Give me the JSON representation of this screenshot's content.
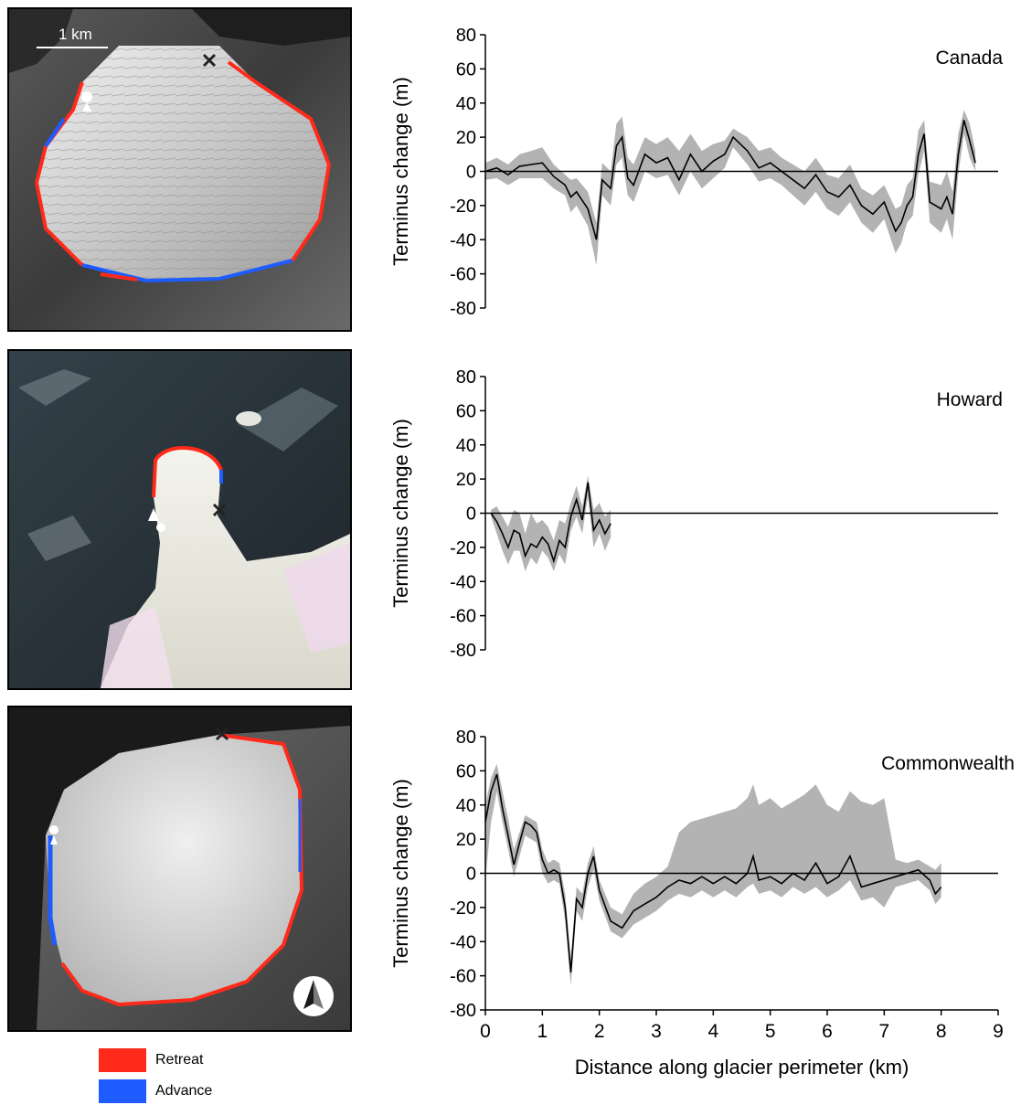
{
  "figure": {
    "scale_bar_label": "1 km",
    "legend": [
      {
        "label": "Retreat",
        "color": "#ff2a1a"
      },
      {
        "label": "Advance",
        "color": "#1e5cff"
      }
    ],
    "colors": {
      "retreat": "#ff2a1a",
      "advance": "#1e5cff",
      "mean_line": "#000000",
      "range_band": "#b3b3b3"
    },
    "icons": [
      "start-marker-icon",
      "end-marker-icon",
      "north-arrow-icon"
    ]
  },
  "chart_data": [
    {
      "type": "line",
      "title": "Canada",
      "ylabel": "Terminus change (m)",
      "xlabel": "",
      "ylim": [
        -80,
        80
      ],
      "yticks": [
        -80,
        -60,
        -40,
        -20,
        0,
        20,
        40,
        60,
        80
      ],
      "xlim": [
        0,
        9
      ],
      "series": [
        {
          "name": "",
          "x": [
            0,
            0.2,
            0.4,
            0.6,
            0.8,
            1.0,
            1.2,
            1.4,
            1.5,
            1.6,
            1.8,
            1.95,
            2.05,
            2.2,
            2.3,
            2.4,
            2.5,
            2.6,
            2.8,
            3.0,
            3.2,
            3.4,
            3.6,
            3.8,
            4.0,
            4.2,
            4.35,
            4.6,
            4.8,
            5.0,
            5.2,
            5.4,
            5.6,
            5.8,
            6.0,
            6.2,
            6.4,
            6.6,
            6.8,
            7.0,
            7.2,
            7.3,
            7.4,
            7.5,
            7.6,
            7.7,
            7.8,
            8.0,
            8.1,
            8.2,
            8.3,
            8.4,
            8.5,
            8.6
          ],
          "y": [
            0,
            2,
            -2,
            3,
            4,
            5,
            -3,
            -8,
            -15,
            -12,
            -22,
            -40,
            -5,
            -10,
            15,
            20,
            -4,
            -8,
            10,
            5,
            8,
            -5,
            10,
            0,
            6,
            10,
            20,
            12,
            2,
            5,
            0,
            -5,
            -10,
            -2,
            -12,
            -15,
            -8,
            -20,
            -25,
            -18,
            -35,
            -30,
            -20,
            -15,
            10,
            22,
            -18,
            -22,
            -15,
            -25,
            10,
            30,
            18,
            5
          ]
        },
        {
          "name": "",
          "x": [
            0,
            0.2,
            0.4,
            0.6,
            0.8,
            1.0,
            1.2,
            1.4,
            1.5,
            1.6,
            1.8,
            1.95,
            2.05,
            2.2,
            2.3,
            2.4,
            2.5,
            2.6,
            2.8,
            3.0,
            3.2,
            3.4,
            3.6,
            3.8,
            4.0,
            4.2,
            4.35,
            4.6,
            4.8,
            5.0,
            5.2,
            5.4,
            5.6,
            5.8,
            6.0,
            6.2,
            6.4,
            6.6,
            6.8,
            7.0,
            7.2,
            7.3,
            7.4,
            7.5,
            7.6,
            7.7,
            7.8,
            8.0,
            8.1,
            8.2,
            8.3,
            8.4,
            8.5,
            8.6
          ],
          "y": [
            5,
            8,
            4,
            10,
            12,
            14,
            4,
            -2,
            -5,
            -4,
            -12,
            -30,
            5,
            0,
            28,
            32,
            8,
            4,
            20,
            16,
            20,
            12,
            22,
            12,
            16,
            18,
            25,
            20,
            12,
            14,
            8,
            4,
            0,
            8,
            -2,
            -4,
            4,
            -10,
            -14,
            -8,
            -22,
            -20,
            -8,
            -4,
            24,
            30,
            -6,
            -8,
            0,
            -12,
            22,
            36,
            28,
            12
          ]
        },
        {
          "name": "",
          "x": [
            0,
            0.2,
            0.4,
            0.6,
            0.8,
            1.0,
            1.2,
            1.4,
            1.5,
            1.6,
            1.8,
            1.95,
            2.05,
            2.2,
            2.3,
            2.4,
            2.5,
            2.6,
            2.8,
            3.0,
            3.2,
            3.4,
            3.6,
            3.8,
            4.0,
            4.2,
            4.35,
            4.6,
            4.8,
            5.0,
            5.2,
            5.4,
            5.6,
            5.8,
            6.0,
            6.2,
            6.4,
            6.6,
            6.8,
            7.0,
            7.2,
            7.3,
            7.4,
            7.5,
            7.6,
            7.7,
            7.8,
            8.0,
            8.1,
            8.2,
            8.3,
            8.4,
            8.5,
            8.6
          ],
          "y": [
            -5,
            -4,
            -8,
            -4,
            -4,
            -4,
            -10,
            -14,
            -24,
            -20,
            -32,
            -55,
            -14,
            -20,
            4,
            8,
            -14,
            -18,
            0,
            -4,
            -2,
            -14,
            0,
            -10,
            -4,
            2,
            14,
            4,
            -6,
            -4,
            -8,
            -14,
            -20,
            -12,
            -22,
            -26,
            -18,
            -30,
            -36,
            -28,
            -48,
            -42,
            -30,
            -26,
            -2,
            12,
            -30,
            -36,
            -28,
            -40,
            -2,
            22,
            8,
            0
          ]
        }
      ]
    },
    {
      "type": "line",
      "title": "Howard",
      "ylabel": "Terminus change (m)",
      "xlabel": "",
      "ylim": [
        -80,
        80
      ],
      "yticks": [
        -80,
        -60,
        -40,
        -20,
        0,
        20,
        40,
        60,
        80
      ],
      "xlim": [
        0,
        9
      ],
      "series": [
        {
          "name": "",
          "x": [
            0.1,
            0.2,
            0.3,
            0.4,
            0.5,
            0.6,
            0.7,
            0.8,
            0.9,
            1.0,
            1.1,
            1.2,
            1.3,
            1.4,
            1.5,
            1.6,
            1.7,
            1.8,
            1.9,
            2.0,
            2.1,
            2.2
          ],
          "y": [
            0,
            -5,
            -12,
            -20,
            -10,
            -12,
            -25,
            -18,
            -20,
            -14,
            -18,
            -28,
            -16,
            -20,
            -2,
            8,
            -4,
            18,
            -10,
            -4,
            -12,
            -6
          ]
        },
        {
          "name": "",
          "x": [
            0.1,
            0.2,
            0.3,
            0.4,
            0.5,
            0.6,
            0.7,
            0.8,
            0.9,
            1.0,
            1.1,
            1.2,
            1.3,
            1.4,
            1.5,
            1.6,
            1.7,
            1.8,
            1.9,
            2.0,
            2.1,
            2.2
          ],
          "y": [
            2,
            4,
            -2,
            -8,
            2,
            0,
            -12,
            0,
            -6,
            -4,
            -8,
            -16,
            -4,
            -6,
            6,
            16,
            4,
            22,
            2,
            6,
            -2,
            2
          ]
        },
        {
          "name": "",
          "x": [
            0.1,
            0.2,
            0.3,
            0.4,
            0.5,
            0.6,
            0.7,
            0.8,
            0.9,
            1.0,
            1.1,
            1.2,
            1.3,
            1.4,
            1.5,
            1.6,
            1.7,
            1.8,
            1.9,
            2.0,
            2.1,
            2.2
          ],
          "y": [
            -2,
            -12,
            -22,
            -30,
            -22,
            -22,
            -34,
            -26,
            -30,
            -22,
            -26,
            -34,
            -24,
            -30,
            -10,
            -2,
            -12,
            10,
            -20,
            -12,
            -22,
            -14
          ]
        }
      ]
    },
    {
      "type": "line",
      "title": "Commonwealth",
      "ylabel": "Terminus change (m)",
      "xlabel": "Distance along glacier perimeter (km)",
      "ylim": [
        -80,
        80
      ],
      "yticks": [
        -80,
        -60,
        -40,
        -20,
        0,
        20,
        40,
        60,
        80
      ],
      "xlim": [
        0,
        9
      ],
      "xticks": [
        0,
        1,
        2,
        3,
        4,
        5,
        6,
        7,
        8,
        9
      ],
      "series": [
        {
          "name": "",
          "x": [
            0,
            0.1,
            0.2,
            0.3,
            0.4,
            0.5,
            0.6,
            0.7,
            0.8,
            0.9,
            1.0,
            1.1,
            1.2,
            1.3,
            1.4,
            1.5,
            1.6,
            1.7,
            1.8,
            1.9,
            2.0,
            2.2,
            2.4,
            2.6,
            2.8,
            3.0,
            3.2,
            3.4,
            3.6,
            3.8,
            4.0,
            4.2,
            4.4,
            4.6,
            4.7,
            4.8,
            5.0,
            5.2,
            5.4,
            5.6,
            5.8,
            6.0,
            6.2,
            6.4,
            6.6,
            6.8,
            7.0,
            7.2,
            7.4,
            7.6,
            7.8,
            7.9,
            8.0
          ],
          "y": [
            30,
            48,
            58,
            38,
            22,
            5,
            18,
            30,
            28,
            24,
            8,
            0,
            2,
            0,
            -20,
            -58,
            -15,
            -20,
            0,
            10,
            -10,
            -28,
            -32,
            -22,
            -18,
            -14,
            -8,
            -4,
            -6,
            -2,
            -6,
            -2,
            -6,
            0,
            10,
            -4,
            -2,
            -6,
            0,
            -4,
            6,
            -6,
            -2,
            10,
            -8,
            -6,
            -4,
            -2,
            0,
            2,
            -4,
            -12,
            -8
          ]
        },
        {
          "name": "",
          "x": [
            0,
            0.1,
            0.2,
            0.3,
            0.4,
            0.5,
            0.6,
            0.7,
            0.8,
            0.9,
            1.0,
            1.1,
            1.2,
            1.3,
            1.4,
            1.5,
            1.6,
            1.7,
            1.8,
            1.9,
            2.0,
            2.2,
            2.4,
            2.6,
            2.8,
            3.0,
            3.2,
            3.4,
            3.6,
            3.8,
            4.0,
            4.2,
            4.4,
            4.6,
            4.7,
            4.8,
            5.0,
            5.2,
            5.4,
            5.6,
            5.8,
            6.0,
            6.2,
            6.4,
            6.6,
            6.8,
            7.0,
            7.2,
            7.4,
            7.6,
            7.8,
            7.9,
            8.0
          ],
          "y": [
            40,
            56,
            64,
            48,
            32,
            14,
            24,
            34,
            32,
            30,
            14,
            6,
            8,
            6,
            -12,
            -50,
            -8,
            -12,
            6,
            16,
            -4,
            -20,
            -24,
            -12,
            -6,
            -2,
            4,
            24,
            30,
            32,
            34,
            36,
            38,
            44,
            52,
            40,
            44,
            38,
            42,
            46,
            52,
            40,
            36,
            48,
            42,
            40,
            44,
            8,
            6,
            8,
            4,
            2,
            6
          ]
        },
        {
          "name": "",
          "x": [
            0,
            0.1,
            0.2,
            0.3,
            0.4,
            0.5,
            0.6,
            0.7,
            0.8,
            0.9,
            1.0,
            1.1,
            1.2,
            1.3,
            1.4,
            1.5,
            1.6,
            1.7,
            1.8,
            1.9,
            2.0,
            2.2,
            2.4,
            2.6,
            2.8,
            3.0,
            3.2,
            3.4,
            3.6,
            3.8,
            4.0,
            4.2,
            4.4,
            4.6,
            4.7,
            4.8,
            5.0,
            5.2,
            5.4,
            5.6,
            5.8,
            6.0,
            6.2,
            6.4,
            6.6,
            6.8,
            7.0,
            7.2,
            7.4,
            7.6,
            7.8,
            7.9,
            8.0
          ],
          "y": [
            -4,
            30,
            48,
            30,
            14,
            -2,
            10,
            22,
            20,
            18,
            0,
            -6,
            -4,
            -6,
            -28,
            -66,
            -22,
            -28,
            -8,
            2,
            -16,
            -34,
            -38,
            -30,
            -26,
            -22,
            -16,
            -12,
            -14,
            -10,
            -14,
            -10,
            -14,
            -8,
            -6,
            -12,
            -10,
            -14,
            -8,
            -12,
            -8,
            -14,
            -10,
            -4,
            -16,
            -14,
            -20,
            -8,
            -6,
            -4,
            -10,
            -18,
            -14
          ]
        }
      ]
    }
  ]
}
